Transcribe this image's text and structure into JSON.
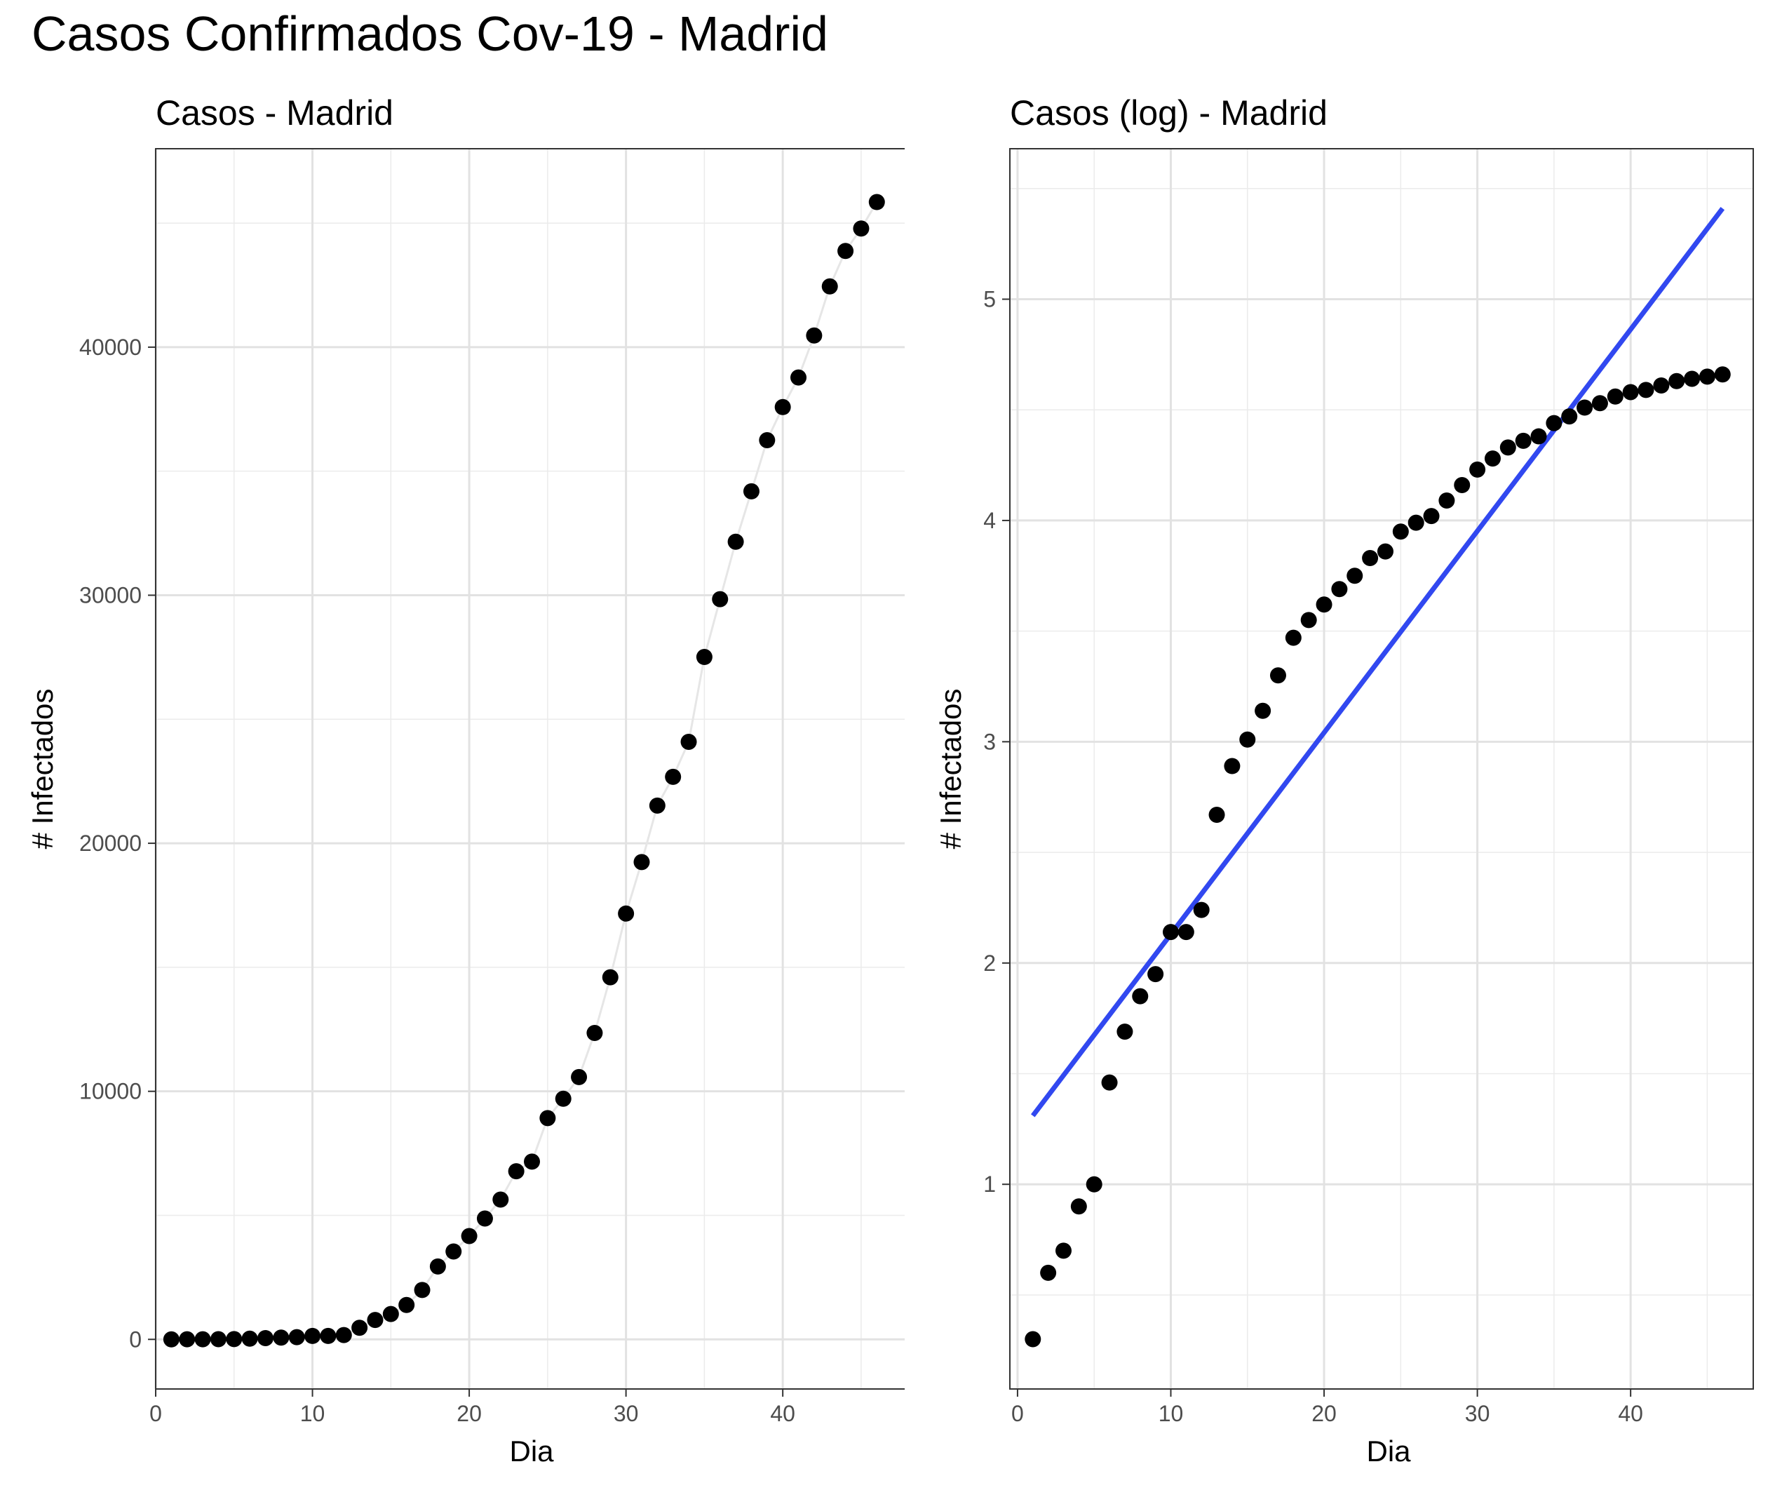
{
  "title": "Casos Confirmados Cov-19 - Madrid",
  "chart_data": [
    {
      "type": "scatter",
      "title": "Casos - Madrid",
      "xlabel": "Dia",
      "ylabel": "# Infectados",
      "xlim": [
        0,
        48
      ],
      "ylim": [
        -2000,
        48000
      ],
      "xticks": [
        0,
        10,
        20,
        30,
        40
      ],
      "yticks": [
        0,
        10000,
        20000,
        30000,
        40000
      ],
      "grid": true,
      "connecting_line": true,
      "series": [
        {
          "x": [
            1,
            2,
            3,
            4,
            5,
            6,
            7,
            8,
            9,
            10,
            11,
            12,
            13,
            14,
            15,
            16,
            17,
            18,
            19,
            20,
            21,
            22,
            23,
            24,
            25,
            26,
            27,
            28,
            29,
            30,
            31,
            32,
            33,
            34,
            35,
            36,
            37,
            38,
            39,
            40,
            41,
            42,
            43,
            44,
            45,
            46
          ],
          "y": [
            2,
            4,
            5,
            8,
            10,
            29,
            49,
            70,
            90,
            137,
            137,
            174,
            469,
            782,
            1024,
            1388,
            1990,
            2940,
            3544,
            4165,
            4871,
            5637,
            6777,
            7165,
            8921,
            9702,
            10575,
            12352,
            14597,
            17166,
            19243,
            21520,
            22677,
            24090,
            27509,
            29840,
            32155,
            34188,
            36249,
            37584,
            38777,
            40469,
            42450,
            43877,
            44783,
            45849
          ]
        }
      ]
    },
    {
      "type": "scatter",
      "title": "Casos (log) - Madrid",
      "xlabel": "Dia",
      "ylabel": "# Infectados",
      "xlim": [
        -0.5,
        48
      ],
      "ylim": [
        0.075,
        5.68
      ],
      "xticks": [
        0,
        10,
        20,
        30,
        40
      ],
      "yticks": [
        1,
        2,
        3,
        4,
        5
      ],
      "grid": true,
      "series": [
        {
          "x": [
            1,
            2,
            3,
            4,
            5,
            6,
            7,
            8,
            9,
            10,
            11,
            12,
            13,
            14,
            15,
            16,
            17,
            18,
            19,
            20,
            21,
            22,
            23,
            24,
            25,
            26,
            27,
            28,
            29,
            30,
            31,
            32,
            33,
            34,
            35,
            36,
            37,
            38,
            39,
            40,
            41,
            42,
            43,
            44,
            45,
            46
          ],
          "y": [
            0.3,
            0.6,
            0.7,
            0.9,
            1.0,
            1.46,
            1.69,
            1.85,
            1.95,
            2.14,
            2.14,
            2.24,
            2.67,
            2.89,
            3.01,
            3.14,
            3.3,
            3.47,
            3.55,
            3.62,
            3.69,
            3.75,
            3.83,
            3.86,
            3.95,
            3.99,
            4.02,
            4.09,
            4.16,
            4.23,
            4.28,
            4.33,
            4.36,
            4.38,
            4.44,
            4.47,
            4.51,
            4.53,
            4.56,
            4.58,
            4.59,
            4.61,
            4.63,
            4.64,
            4.65,
            4.66
          ]
        }
      ],
      "trend_line": {
        "x": [
          1,
          46
        ],
        "y": [
          1.31,
          5.41
        ],
        "color": "#3148f0"
      }
    }
  ]
}
